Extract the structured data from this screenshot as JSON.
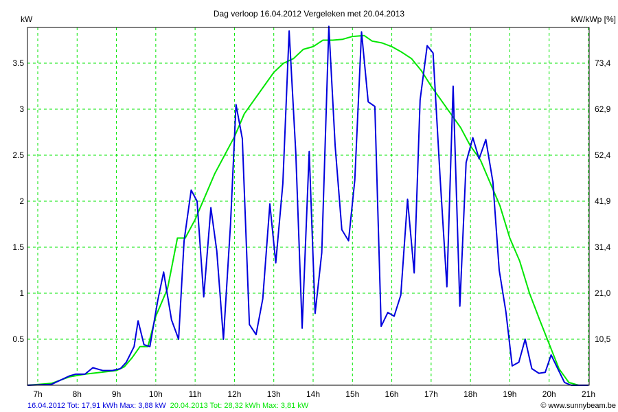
{
  "chart_data": {
    "type": "line",
    "title": "Dag  verloop 16.04.2012   Vergeleken met 20.04.2013",
    "ylabel": "kW",
    "y2label": "kW/kWp [%]",
    "xlabel": "",
    "xlim": [
      6.74,
      21.0
    ],
    "ylim": [
      0,
      3.9
    ],
    "grid": true,
    "x_ticks": [
      7,
      8,
      9,
      10,
      11,
      12,
      13,
      14,
      15,
      16,
      17,
      18,
      19,
      20,
      21
    ],
    "x_tick_labels": [
      "7h",
      "8h",
      "9h",
      "10h",
      "11h",
      "12h",
      "13h",
      "14h",
      "15h",
      "16h",
      "17h",
      "18h",
      "19h",
      "20h",
      "21h"
    ],
    "y_ticks": [
      0.5,
      1,
      1.5,
      2,
      2.5,
      3,
      3.5
    ],
    "y_tick_labels": [
      "0.5",
      "1",
      "1.5",
      "2",
      "2.5",
      "3",
      "3.5"
    ],
    "y2_tick_labels": [
      "10,5",
      "21,0",
      "31,4",
      "41,9",
      "52,4",
      "62,9",
      "73,4"
    ],
    "series": [
      {
        "name": "16.04.2012",
        "color": "#0000dd",
        "legend": "16.04.2012 Tot: 17,91 kWh Max: 3,88 kW",
        "x": [
          6.74,
          7.35,
          7.8,
          7.96,
          8.2,
          8.4,
          8.65,
          8.9,
          9.1,
          9.25,
          9.45,
          9.55,
          9.7,
          9.85,
          10.05,
          10.2,
          10.4,
          10.58,
          10.72,
          10.9,
          11.05,
          11.22,
          11.4,
          11.55,
          11.72,
          11.9,
          12.04,
          12.2,
          12.38,
          12.55,
          12.72,
          12.9,
          13.05,
          13.23,
          13.39,
          13.56,
          13.72,
          13.9,
          14.05,
          14.22,
          14.4,
          14.56,
          14.73,
          14.9,
          15.06,
          15.23,
          15.4,
          15.57,
          15.73,
          15.9,
          16.06,
          16.23,
          16.4,
          16.57,
          16.72,
          16.9,
          17.05,
          17.23,
          17.4,
          17.56,
          17.73,
          17.89,
          18.06,
          18.22,
          18.39,
          18.57,
          18.73,
          18.9,
          19.06,
          19.23,
          19.39,
          19.56,
          19.74,
          19.9,
          20.05,
          20.23,
          20.39,
          20.56,
          21.0
        ],
        "values": [
          0,
          0.01,
          0.1,
          0.12,
          0.12,
          0.19,
          0.16,
          0.16,
          0.18,
          0.25,
          0.42,
          0.7,
          0.44,
          0.42,
          0.92,
          1.23,
          0.71,
          0.5,
          1.57,
          2.12,
          2.0,
          0.96,
          1.93,
          1.46,
          0.5,
          1.75,
          3.05,
          2.68,
          0.66,
          0.55,
          0.94,
          1.97,
          1.33,
          2.19,
          3.85,
          2.52,
          0.62,
          2.54,
          0.78,
          1.44,
          3.9,
          2.6,
          1.69,
          1.57,
          2.23,
          3.84,
          3.08,
          3.03,
          0.64,
          0.79,
          0.75,
          0.98,
          2.02,
          1.22,
          3.1,
          3.69,
          3.61,
          2.25,
          1.07,
          3.25,
          0.86,
          2.42,
          2.69,
          2.46,
          2.67,
          2.21,
          1.25,
          0.8,
          0.21,
          0.25,
          0.5,
          0.18,
          0.13,
          0.14,
          0.33,
          0.17,
          0.03,
          0,
          0
        ]
      },
      {
        "name": "20.04.2013",
        "color": "#00e600",
        "legend": "20.04.2013 Tot: 28,32 kWh Max: 3,81 kW",
        "x": [
          6.74,
          7.35,
          7.8,
          8.2,
          8.6,
          9.0,
          9.2,
          9.4,
          9.6,
          9.8,
          10.0,
          10.3,
          10.55,
          10.75,
          11.0,
          11.25,
          11.5,
          11.75,
          12.0,
          12.25,
          12.5,
          12.75,
          13.0,
          13.25,
          13.5,
          13.75,
          14.0,
          14.25,
          14.5,
          14.75,
          15.0,
          15.3,
          15.5,
          15.75,
          16.0,
          16.25,
          16.5,
          16.75,
          17.0,
          17.25,
          17.5,
          17.75,
          18.0,
          18.25,
          18.5,
          18.75,
          19.0,
          19.25,
          19.5,
          19.75,
          20.0,
          20.25,
          20.5,
          20.75,
          21.0
        ],
        "values": [
          0,
          0.02,
          0.09,
          0.12,
          0.14,
          0.16,
          0.2,
          0.3,
          0.42,
          0.42,
          0.75,
          1.05,
          1.6,
          1.6,
          1.8,
          2.05,
          2.3,
          2.5,
          2.7,
          2.95,
          3.1,
          3.25,
          3.4,
          3.5,
          3.55,
          3.65,
          3.68,
          3.75,
          3.75,
          3.76,
          3.79,
          3.8,
          3.74,
          3.72,
          3.68,
          3.62,
          3.55,
          3.42,
          3.25,
          3.1,
          2.95,
          2.8,
          2.6,
          2.45,
          2.2,
          1.95,
          1.6,
          1.35,
          1.0,
          0.72,
          0.45,
          0.18,
          0.03,
          0,
          0
        ]
      }
    ],
    "credit": "© www.sunnybeam.be"
  }
}
